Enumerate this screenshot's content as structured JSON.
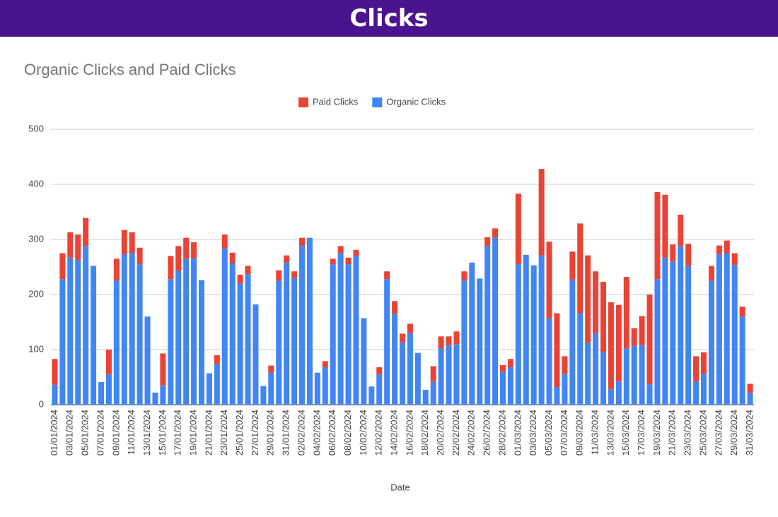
{
  "header": {
    "title": "Clicks"
  },
  "chart_data": {
    "type": "stacked_bar",
    "title": "Organic Clicks and Paid Clicks",
    "x_label": "Date",
    "categories": [
      "01/01/2024",
      null,
      "03/01/2024",
      null,
      "05/01/2024",
      null,
      "07/01/2024",
      null,
      "09/01/2024",
      null,
      "11/01/2024",
      null,
      "13/01/2024",
      null,
      "15/01/2024",
      null,
      "17/01/2024",
      null,
      "19/01/2024",
      null,
      "21/01/2024",
      null,
      "23/01/2024",
      null,
      "25/01/2024",
      null,
      "27/01/2024",
      null,
      "29/01/2024",
      null,
      "31/01/2024",
      null,
      "02/02/2024",
      null,
      "04/02/2024",
      null,
      "06/02/2024",
      null,
      "08/02/2024",
      null,
      "10/02/2024",
      null,
      "12/02/2024",
      null,
      "14/02/2024",
      null,
      "16/02/2024",
      null,
      "18/02/2024",
      null,
      "20/02/2024",
      null,
      "22/02/2024",
      null,
      "24/02/2024",
      null,
      "26/02/2024",
      null,
      "28/02/2024",
      null,
      "01/03/2024",
      null,
      "03/03/2024",
      null,
      "05/03/2024",
      null,
      "07/03/2024",
      null,
      "09/03/2024",
      null,
      "11/03/2024",
      null,
      "13/03/2024",
      null,
      "15/03/2024",
      null,
      "17/03/2024",
      null,
      "19/03/2024",
      null,
      "21/03/2024",
      null,
      "23/03/2024",
      null,
      "25/03/2024",
      null,
      "27/03/2024",
      null,
      "29/03/2024",
      null,
      "31/03/2024"
    ],
    "series": [
      {
        "name": "Paid Clicks",
        "color": "#ea4335",
        "values": [
          47,
          47,
          46,
          46,
          51,
          0,
          0,
          45,
          40,
          44,
          38,
          30,
          0,
          0,
          58,
          42,
          45,
          38,
          29,
          0,
          0,
          16,
          25,
          19,
          16,
          15,
          0,
          0,
          13,
          19,
          13,
          12,
          15,
          0,
          0,
          11,
          10,
          13,
          12,
          11,
          0,
          0,
          13,
          14,
          23,
          16,
          17,
          0,
          0,
          28,
          22,
          16,
          23,
          16,
          0,
          0,
          16,
          17,
          12,
          15,
          128,
          0,
          0,
          157,
          139,
          134,
          32,
          51,
          163,
          158,
          112,
          128,
          158,
          139,
          130,
          32,
          53,
          163,
          158,
          114,
          31,
          57,
          40,
          46,
          39,
          27,
          16,
          23,
          21,
          18,
          16
        ]
      },
      {
        "name": "Organic Clicks",
        "color": "#4285f4",
        "values": [
          36,
          228,
          267,
          263,
          288,
          252,
          41,
          55,
          225,
          273,
          275,
          255,
          160,
          22,
          35,
          228,
          243,
          265,
          266,
          226,
          57,
          74,
          284,
          257,
          220,
          237,
          182,
          34,
          58,
          225,
          258,
          230,
          288,
          303,
          58,
          68,
          255,
          275,
          255,
          270,
          157,
          33,
          55,
          228,
          165,
          113,
          130,
          94,
          27,
          42,
          102,
          108,
          110,
          226,
          258,
          229,
          288,
          303,
          60,
          68,
          255,
          272,
          253,
          271,
          157,
          32,
          56,
          227,
          166,
          113,
          130,
          95,
          28,
          42,
          102,
          107,
          108,
          37,
          228,
          267,
          260,
          288,
          252,
          42,
          56,
          225,
          273,
          275,
          254,
          160,
          22
        ]
      }
    ],
    "ylim": [
      0,
      500
    ],
    "yticks": [
      0,
      100,
      200,
      300,
      400,
      500
    ],
    "grid": true
  }
}
